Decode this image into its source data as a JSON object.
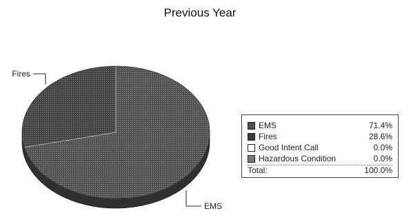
{
  "chart_data": {
    "type": "pie",
    "title": "Previous Year",
    "slices": [
      {
        "name": "EMS",
        "value": 71.4,
        "label": "71.4%",
        "color": "#4f4f4f"
      },
      {
        "name": "Fires",
        "value": 28.6,
        "label": "28.6%",
        "color": "#3c3c3c"
      },
      {
        "name": "Good Intent Call",
        "value": 0.0,
        "label": "0.0%",
        "color": "#ffffff"
      },
      {
        "name": "Hazardous Condition",
        "value": 0.0,
        "label": "0.0%",
        "color": "#7a7a7a"
      }
    ],
    "total": {
      "label": "Total:",
      "value": "100.0%"
    },
    "callouts": {
      "fires": "Fires",
      "ems": "EMS"
    },
    "legend_position": "right"
  }
}
